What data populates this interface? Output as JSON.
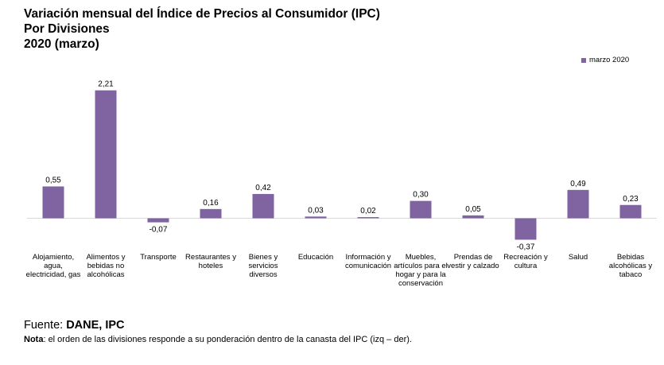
{
  "title": {
    "line1": "Variación mensual del Índice de Precios al Consumidor (IPC)",
    "line2": "Por Divisiones",
    "line3": "2020 (marzo)"
  },
  "legend": {
    "label": "marzo 2020",
    "color": "#8064a2"
  },
  "chart_data": {
    "type": "bar",
    "categories": [
      "Alojamiento, agua, electricidad, gas",
      "Alimentos y bebidas no alcohólicas",
      "Transporte",
      "Restaurantes y hoteles",
      "Bienes y servicios diversos",
      "Educación",
      "Información y comunicación",
      "Muebles, artículos para el hogar y para la conservación",
      "Prendas de vestir y calzado",
      "Recreación y cultura",
      "Salud",
      "Bebidas alcohólicas y tabaco"
    ],
    "series": [
      {
        "name": "marzo 2020",
        "values": [
          0.55,
          2.21,
          -0.07,
          0.16,
          0.42,
          0.03,
          0.02,
          0.3,
          0.05,
          -0.37,
          0.49,
          0.23
        ],
        "labels": [
          "0,55",
          "2,21",
          "-0,07",
          "0,16",
          "0,42",
          "0,03",
          "0,02",
          "0,30",
          "0,05",
          "-0,37",
          "0,49",
          "0,23"
        ]
      }
    ],
    "legend_position": "top-right",
    "grid": false,
    "xlabel": "",
    "ylabel": ""
  },
  "footer": {
    "source_prefix": "Fuente: ",
    "source_value": "DANE, IPC",
    "note_label": "Nota",
    "note_text": ": el orden de las divisiones responde a su ponderación dentro de la canasta del IPC (izq – der)."
  }
}
